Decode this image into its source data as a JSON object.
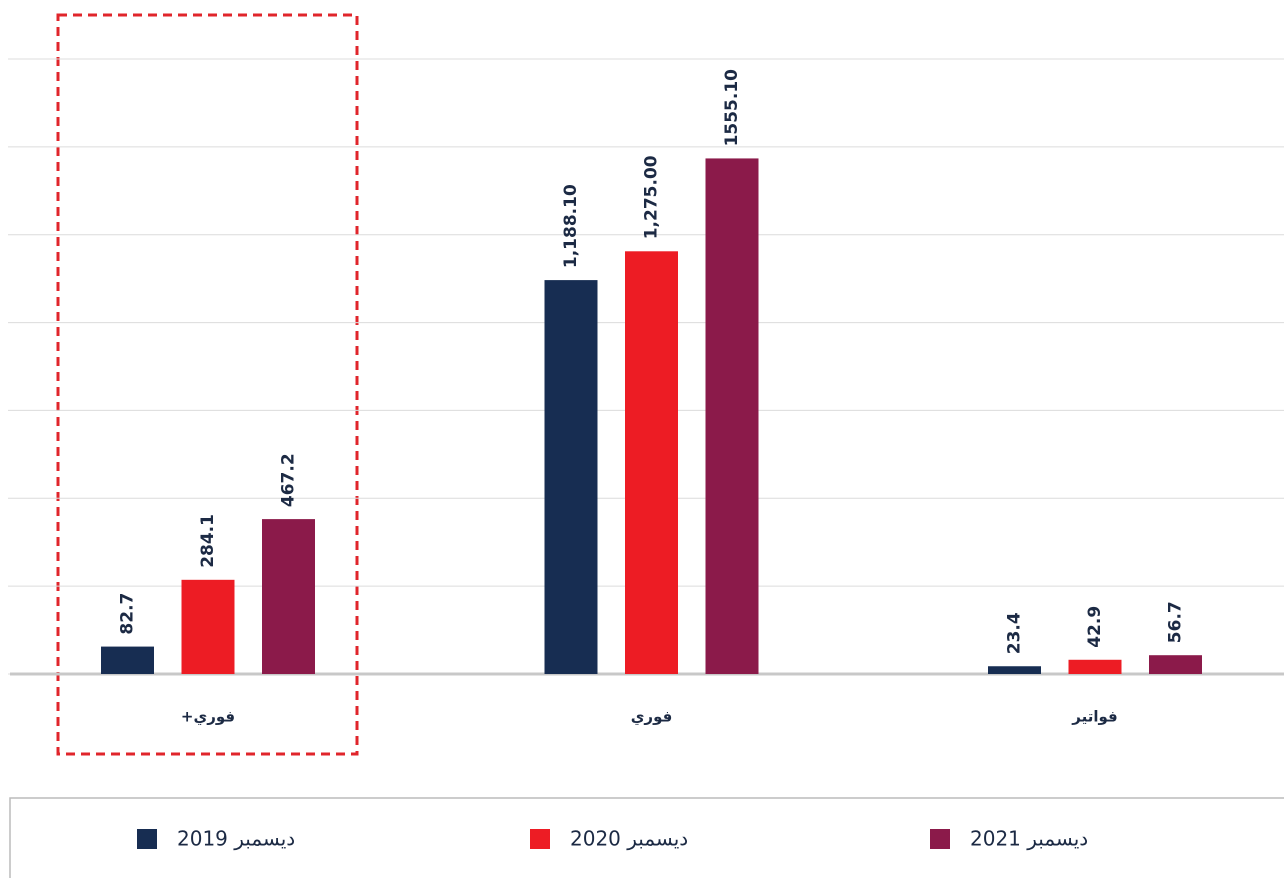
{
  "chart_data": {
    "type": "bar",
    "categories": [
      "فوري+",
      "فوري",
      "فواتير"
    ],
    "series": [
      {
        "name": "ديسمبر 2019",
        "color": "#172d52",
        "values": [
          82.7,
          1188.1,
          23.4
        ],
        "value_labels": [
          "82.7",
          "1,188.10",
          "23.4"
        ]
      },
      {
        "name": "ديسمبر 2020",
        "color": "#ed1c24",
        "values": [
          284.1,
          1275,
          42.9
        ],
        "value_labels": [
          "284.1",
          "1,275.00",
          "42.9"
        ]
      },
      {
        "name": "ديسمبر 2021",
        "color": "#8b1a4a",
        "values": [
          467.2,
          1555.1,
          56.7
        ],
        "value_labels": [
          "467.2",
          "1555.10",
          "56.7"
        ]
      }
    ],
    "ylim": [
      0,
      1855
    ],
    "yticks": [
      0,
      265,
      530,
      795,
      1060,
      1325,
      1590,
      1855
    ],
    "grid": true,
    "legend": "bottom"
  }
}
